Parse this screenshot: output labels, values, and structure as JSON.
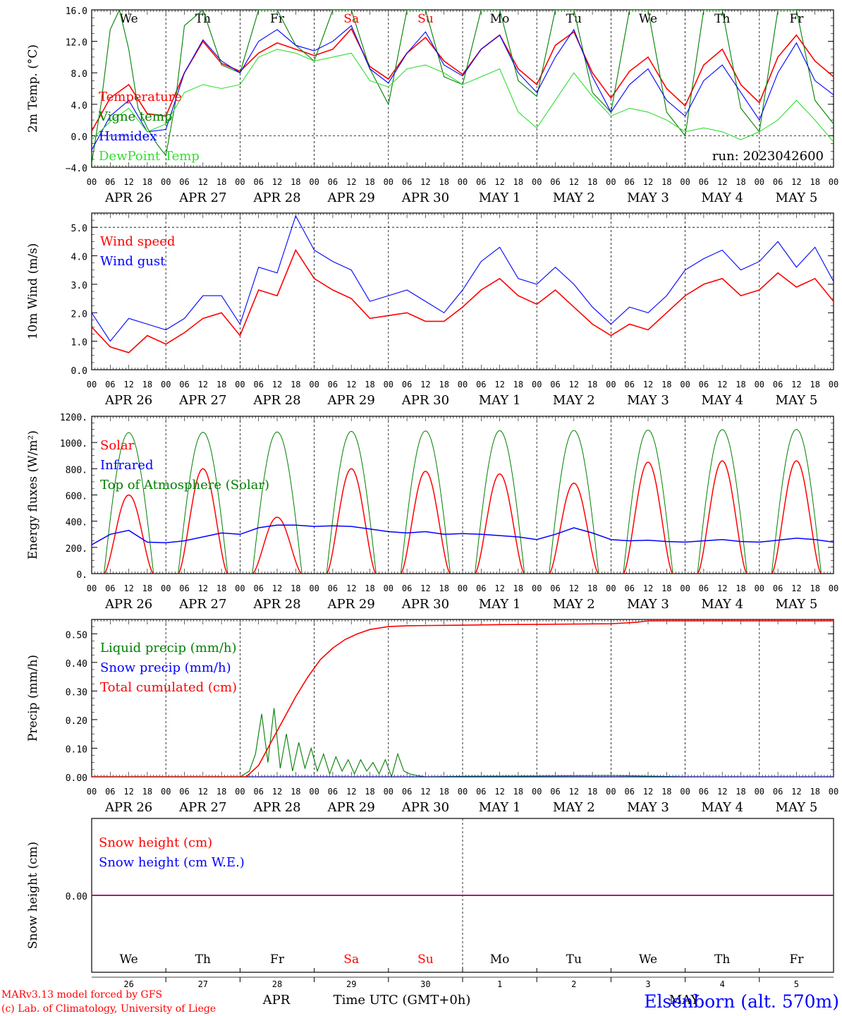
{
  "title": {
    "station": "Elsenborn (alt. 570m)",
    "run": "run: 2023042600",
    "credit_line1": "MARv3.13 model forced by GFS",
    "credit_line2": "(c) Lab. of Climatology, University of Liege",
    "time_label": "Time UTC (GMT+0h)",
    "month_apr": "APR",
    "month_may": "MAY"
  },
  "days": [
    {
      "date": "APR 26",
      "name": "We",
      "num": "26",
      "weekend": false
    },
    {
      "date": "APR 27",
      "name": "Th",
      "num": "27",
      "weekend": false
    },
    {
      "date": "APR 28",
      "name": "Fr",
      "num": "28",
      "weekend": false
    },
    {
      "date": "APR 29",
      "name": "Sa",
      "num": "29",
      "weekend": true
    },
    {
      "date": "APR 30",
      "name": "Su",
      "num": "30",
      "weekend": true
    },
    {
      "date": "MAY  1",
      "name": "Mo",
      "num": "1",
      "weekend": false
    },
    {
      "date": "MAY  2",
      "name": "Tu",
      "num": "2",
      "weekend": false
    },
    {
      "date": "MAY  3",
      "name": "We",
      "num": "3",
      "weekend": false
    },
    {
      "date": "MAY  4",
      "name": "Th",
      "num": "4",
      "weekend": false
    },
    {
      "date": "MAY  5",
      "name": "Fr",
      "num": "5",
      "weekend": false
    }
  ],
  "hour_labels": [
    "00",
    "06",
    "12",
    "18"
  ],
  "end_hour_label": "00",
  "colors": {
    "red": "#ff0000",
    "green": "#008000",
    "blue": "#0000ff",
    "lightgreen": "#33dd33",
    "purple": "#800080",
    "axis": "#000000"
  },
  "chart_data": [
    {
      "type": "line",
      "ylabel": "2m Temp. (°C)",
      "ylim": [
        -4,
        16
      ],
      "yticks": [
        "−4.0",
        "0.0",
        "4.0",
        "8.0",
        "12.0",
        "16.0"
      ],
      "ytick_values": [
        -4,
        0,
        4,
        8,
        12,
        16
      ],
      "dashed_h": [
        0
      ],
      "x_unit": "hours since APR 26 00 UTC",
      "series": [
        {
          "name": "Temperature",
          "color": "red",
          "x": [
            0,
            6,
            12,
            18,
            24,
            30,
            36,
            42,
            48,
            54,
            60,
            66,
            72,
            78,
            84,
            90,
            96,
            102,
            108,
            114,
            120,
            126,
            132,
            138,
            144,
            150,
            156,
            162,
            168,
            174,
            180,
            186,
            192,
            198,
            204,
            210,
            216,
            222,
            228,
            234,
            240
          ],
          "y": [
            0.6,
            4.8,
            6.5,
            2.8,
            2.5,
            8.0,
            12.0,
            9.2,
            8.2,
            10.5,
            11.8,
            11.0,
            10.2,
            11.0,
            13.6,
            8.8,
            7.2,
            10.5,
            12.5,
            9.5,
            7.8,
            11.0,
            12.8,
            8.5,
            6.5,
            11.5,
            13.2,
            8.0,
            4.8,
            8.2,
            10.0,
            6.0,
            3.8,
            9.0,
            11.0,
            6.5,
            4.2,
            10.0,
            12.8,
            9.5,
            7.5
          ]
        },
        {
          "name": "Vigne temp",
          "color": "green",
          "x": [
            0,
            3,
            6,
            9,
            12,
            15,
            18,
            21,
            24,
            27,
            30,
            36,
            42,
            48,
            54,
            60,
            66,
            72,
            78,
            84,
            90,
            96,
            102,
            108,
            114,
            120,
            126,
            132,
            138,
            144,
            150,
            156,
            162,
            168,
            174,
            180,
            186,
            192,
            198,
            204,
            210,
            216,
            222,
            228,
            234,
            240
          ],
          "y": [
            -3.5,
            4.0,
            13.5,
            16.0,
            11.0,
            3.5,
            1.0,
            -1.0,
            -2.5,
            4.0,
            14.0,
            16.0,
            9.0,
            8.0,
            16.0,
            16.0,
            11.5,
            9.5,
            16.0,
            16.0,
            8.5,
            4.0,
            16.0,
            16.0,
            7.5,
            6.5,
            16.0,
            16.0,
            7.0,
            5.0,
            16.0,
            16.0,
            5.5,
            3.0,
            16.0,
            16.0,
            3.0,
            0.0,
            16.0,
            16.0,
            3.5,
            0.5,
            16.0,
            16.0,
            4.5,
            1.5
          ]
        },
        {
          "name": "Humidex",
          "color": "blue",
          "x": [
            0,
            6,
            12,
            18,
            24,
            30,
            36,
            42,
            48,
            54,
            60,
            66,
            72,
            78,
            84,
            90,
            96,
            102,
            108,
            114,
            120,
            126,
            132,
            138,
            144,
            150,
            156,
            162,
            168,
            174,
            180,
            186,
            192,
            198,
            204,
            210,
            216,
            222,
            228,
            234,
            240
          ],
          "y": [
            -1.8,
            2.5,
            4.5,
            0.5,
            0.8,
            8.0,
            12.2,
            9.5,
            8.0,
            12.0,
            13.5,
            11.5,
            10.8,
            12.0,
            14.0,
            8.5,
            6.7,
            10.5,
            13.2,
            9.0,
            7.6,
            11.0,
            12.8,
            8.0,
            5.5,
            10.0,
            13.5,
            7.5,
            3.0,
            6.5,
            8.5,
            4.5,
            2.5,
            7.0,
            9.0,
            5.5,
            2.0,
            8.0,
            11.8,
            7.0,
            5.2
          ]
        },
        {
          "name": "DewPoint Temp",
          "color": "lightgreen",
          "x": [
            0,
            6,
            12,
            18,
            24,
            30,
            36,
            42,
            48,
            54,
            60,
            66,
            72,
            78,
            84,
            90,
            96,
            102,
            108,
            114,
            120,
            126,
            132,
            138,
            144,
            150,
            156,
            162,
            168,
            174,
            180,
            186,
            192,
            198,
            204,
            210,
            216,
            222,
            228,
            234,
            240
          ],
          "y": [
            -0.5,
            1.8,
            3.5,
            0.5,
            1.5,
            5.5,
            6.5,
            6.0,
            6.5,
            10.0,
            11.0,
            10.5,
            9.5,
            10.0,
            10.5,
            7.0,
            6.2,
            8.5,
            9.0,
            8.0,
            6.5,
            7.5,
            8.5,
            3.0,
            1.0,
            4.5,
            8.0,
            5.0,
            2.5,
            3.5,
            3.0,
            2.0,
            0.5,
            1.0,
            0.5,
            -0.5,
            0.5,
            2.0,
            4.5,
            2.0,
            -0.8
          ]
        }
      ]
    },
    {
      "type": "line",
      "ylabel": "10m Wind (m/s)",
      "ylim": [
        0,
        5.5
      ],
      "yticks": [
        "0.0",
        "1.0",
        "2.0",
        "3.0",
        "4.0",
        "5.0"
      ],
      "ytick_values": [
        0,
        1,
        2,
        3,
        4,
        5
      ],
      "dashed_h": [
        5
      ],
      "x_unit": "hours since APR 26 00 UTC",
      "series": [
        {
          "name": "Wind speed",
          "color": "red",
          "x": [
            0,
            6,
            12,
            18,
            24,
            30,
            36,
            42,
            48,
            54,
            60,
            66,
            72,
            78,
            84,
            90,
            96,
            102,
            108,
            114,
            120,
            126,
            132,
            138,
            144,
            150,
            156,
            162,
            168,
            174,
            180,
            186,
            192,
            198,
            204,
            210,
            216,
            222,
            228,
            234,
            240
          ],
          "y": [
            1.5,
            0.8,
            0.6,
            1.2,
            0.9,
            1.3,
            1.8,
            2.0,
            1.2,
            2.8,
            2.6,
            4.2,
            3.2,
            2.8,
            2.5,
            1.8,
            1.9,
            2.0,
            1.7,
            1.7,
            2.2,
            2.8,
            3.2,
            2.6,
            2.3,
            2.8,
            2.2,
            1.6,
            1.2,
            1.6,
            1.4,
            2.0,
            2.6,
            3.0,
            3.2,
            2.6,
            2.8,
            3.4,
            2.9,
            3.2,
            2.4
          ]
        },
        {
          "name": "Wind gust",
          "color": "blue",
          "x": [
            0,
            6,
            12,
            18,
            24,
            30,
            36,
            42,
            48,
            54,
            60,
            66,
            72,
            78,
            84,
            90,
            96,
            102,
            108,
            114,
            120,
            126,
            132,
            138,
            144,
            150,
            156,
            162,
            168,
            174,
            180,
            186,
            192,
            198,
            204,
            210,
            216,
            222,
            228,
            234,
            240
          ],
          "y": [
            2.0,
            1.0,
            1.8,
            1.6,
            1.4,
            1.8,
            2.6,
            2.6,
            1.6,
            3.6,
            3.4,
            5.4,
            4.2,
            3.8,
            3.5,
            2.4,
            2.6,
            2.8,
            2.4,
            2.0,
            2.8,
            3.8,
            4.3,
            3.2,
            3.0,
            3.6,
            3.0,
            2.2,
            1.6,
            2.2,
            2.0,
            2.6,
            3.5,
            3.9,
            4.2,
            3.5,
            3.8,
            4.5,
            3.6,
            4.3,
            3.1
          ]
        }
      ]
    },
    {
      "type": "line",
      "ylabel": "Energy fluxes (W/m²)",
      "ylim": [
        0,
        1200
      ],
      "yticks": [
        "0.",
        "200.",
        "400.",
        "600.",
        "800.",
        "1000.",
        "1200."
      ],
      "ytick_values": [
        0,
        200,
        400,
        600,
        800,
        1000,
        1200
      ],
      "dashed_h": [],
      "x_unit": "hours since APR 26 00 UTC",
      "solar_daily_peak": [
        600,
        800,
        430,
        800,
        780,
        760,
        690,
        850,
        860,
        860
      ],
      "toa_daily_peak": [
        1075,
        1078,
        1080,
        1085,
        1088,
        1090,
        1092,
        1095,
        1098,
        1100
      ],
      "infrared_x": [
        0,
        6,
        12,
        18,
        24,
        30,
        36,
        42,
        48,
        54,
        60,
        66,
        72,
        78,
        84,
        90,
        96,
        102,
        108,
        114,
        120,
        126,
        132,
        138,
        144,
        150,
        156,
        162,
        168,
        174,
        180,
        186,
        192,
        198,
        204,
        210,
        216,
        222,
        228,
        234,
        240
      ],
      "infrared_y": [
        220,
        300,
        330,
        240,
        235,
        250,
        280,
        310,
        300,
        350,
        370,
        370,
        360,
        365,
        360,
        340,
        320,
        310,
        320,
        300,
        305,
        300,
        290,
        280,
        260,
        300,
        350,
        310,
        260,
        250,
        255,
        245,
        240,
        250,
        260,
        245,
        240,
        255,
        270,
        260,
        240
      ],
      "series": [
        {
          "name": "Solar",
          "color": "red"
        },
        {
          "name": "Infrared",
          "color": "blue"
        },
        {
          "name": "Top of Atmosphere (Solar)",
          "color": "green"
        }
      ]
    },
    {
      "type": "line",
      "ylabel": "Precip (mm/h)",
      "ylim": [
        0,
        0.55
      ],
      "yticks": [
        "0.00",
        "0.10",
        "0.20",
        "0.30",
        "0.40",
        "0.50"
      ],
      "ytick_values": [
        0,
        0.1,
        0.2,
        0.3,
        0.4,
        0.5
      ],
      "dashed_h": [],
      "x_unit": "hours since APR 26 00 UTC",
      "series": [
        {
          "name": "Liquid precip (mm/h)",
          "color": "green",
          "x": [
            48,
            51,
            53,
            55,
            57,
            59,
            61,
            63,
            65,
            67,
            69,
            71,
            73,
            75,
            77,
            79,
            81,
            83,
            85,
            87,
            89,
            91,
            93,
            95,
            97,
            99,
            101,
            103,
            105,
            108,
            120,
            144,
            168,
            192
          ],
          "y": [
            0,
            0.02,
            0.08,
            0.22,
            0.05,
            0.24,
            0.03,
            0.15,
            0.02,
            0.12,
            0.03,
            0.1,
            0.02,
            0.08,
            0.01,
            0.07,
            0.02,
            0.06,
            0.01,
            0.06,
            0.02,
            0.05,
            0.01,
            0.06,
            0.0,
            0.08,
            0.02,
            0.01,
            0.005,
            0,
            0.002,
            0.003,
            0.005,
            0
          ]
        },
        {
          "name": "Snow precip (mm/h)",
          "color": "blue",
          "x": [
            0,
            240
          ],
          "y": [
            0,
            0
          ]
        },
        {
          "name": "Total cumulated (cm)",
          "color": "red",
          "x": [
            0,
            50,
            54,
            58,
            62,
            66,
            70,
            74,
            78,
            82,
            86,
            90,
            96,
            102,
            110,
            120,
            132,
            144,
            168,
            176,
            180,
            190,
            240
          ],
          "y": [
            0,
            0,
            0.04,
            0.12,
            0.2,
            0.28,
            0.35,
            0.41,
            0.45,
            0.48,
            0.5,
            0.515,
            0.525,
            0.528,
            0.529,
            0.53,
            0.532,
            0.533,
            0.535,
            0.54,
            0.545,
            0.545,
            0.545
          ]
        }
      ]
    },
    {
      "type": "line",
      "ylabel": "Snow height (cm)",
      "ylim": [
        -1,
        1
      ],
      "yticks": [
        "0.00"
      ],
      "ytick_values": [
        0
      ],
      "dashed_h": [],
      "x_unit": "hours since APR 26 00 UTC",
      "series": [
        {
          "name": "Snow height (cm)",
          "color": "red",
          "x": [
            0,
            240
          ],
          "y": [
            0,
            0
          ]
        },
        {
          "name": "Snow height (cm W.E.)",
          "color": "blue",
          "x": [
            0,
            240
          ],
          "y": [
            0,
            0
          ]
        }
      ]
    }
  ]
}
